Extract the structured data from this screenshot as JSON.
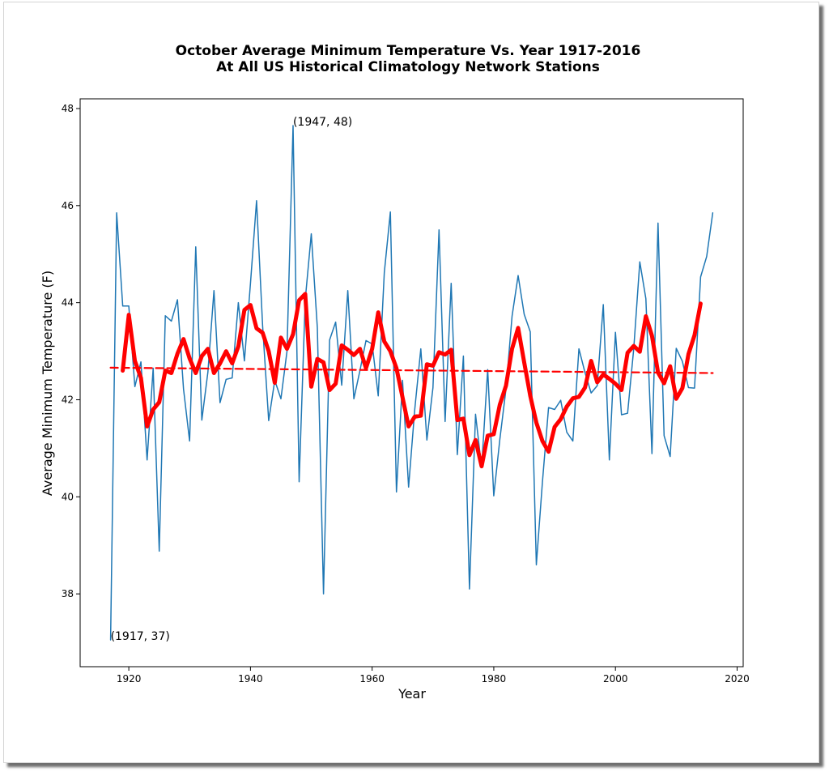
{
  "chart_data": {
    "type": "line",
    "title": "October Average Minimum Temperature Vs. Year 1917-2016",
    "subtitle": "At All US Historical Climatology Network Stations",
    "xlabel": "Year",
    "ylabel": "Average Minimum Temperature (F)",
    "xlim": [
      1912,
      2021
    ],
    "ylim": [
      36.5,
      48.2
    ],
    "xticks": [
      1920,
      1940,
      1960,
      1980,
      2000,
      2020
    ],
    "yticks": [
      38,
      40,
      42,
      44,
      46,
      48
    ],
    "grid": false,
    "legend": "none",
    "annotations": [
      {
        "text": "(1947, 48)",
        "x": 1947,
        "y": 47.65
      },
      {
        "text": "(1917, 37)",
        "x": 1917,
        "y": 37.05
      }
    ],
    "series": [
      {
        "style": "thin-line",
        "color": "#1f77b4",
        "x_start": 1917,
        "x_step": 1,
        "values": [
          37.05,
          45.85,
          43.93,
          43.93,
          42.27,
          42.78,
          40.76,
          42.65,
          38.88,
          43.73,
          43.62,
          44.06,
          42.22,
          41.15,
          45.15,
          41.58,
          42.57,
          44.25,
          41.94,
          42.42,
          42.45,
          44.0,
          42.8,
          44.4,
          46.1,
          43.52,
          41.57,
          42.4,
          42.02,
          43.0,
          47.65,
          40.31,
          44.05,
          45.42,
          43.48,
          38.0,
          43.23,
          43.6,
          42.3,
          44.25,
          42.02,
          42.6,
          43.22,
          43.15,
          42.08,
          44.62,
          45.87,
          40.1,
          42.4,
          40.2,
          41.8,
          43.05,
          41.17,
          42.25,
          45.5,
          41.55,
          44.4,
          40.87,
          42.9,
          38.1,
          41.7,
          40.6,
          42.62,
          40.02,
          41.18,
          42.22,
          43.72,
          44.56,
          43.76,
          43.4,
          38.6,
          40.3,
          41.84,
          41.8,
          41.99,
          41.33,
          41.15,
          43.05,
          42.56,
          42.14,
          42.29,
          43.96,
          40.76,
          43.39,
          41.69,
          41.72,
          43.05,
          44.84,
          44.08,
          40.89,
          45.64,
          41.26,
          40.83,
          43.06,
          42.79,
          42.25,
          42.24,
          44.53,
          44.95,
          45.85
        ]
      },
      {
        "style": "thick-line",
        "color": "#ff0000",
        "x_start": 1919,
        "x_step": 1,
        "values": [
          42.6,
          43.75,
          42.8,
          42.45,
          41.45,
          41.8,
          41.95,
          42.6,
          42.55,
          42.95,
          43.25,
          42.85,
          42.55,
          42.9,
          43.05,
          42.55,
          42.75,
          43.0,
          42.75,
          43.1,
          43.85,
          43.95,
          43.47,
          43.38,
          43.0,
          42.35,
          43.28,
          43.05,
          43.35,
          44.05,
          44.18,
          42.27,
          42.84,
          42.77,
          42.2,
          42.33,
          43.12,
          43.03,
          42.92,
          43.05,
          42.65,
          43.05,
          43.8,
          43.2,
          43.0,
          42.65,
          42.05,
          41.45,
          41.65,
          41.67,
          42.73,
          42.7,
          42.98,
          42.93,
          43.03,
          41.58,
          41.61,
          40.86,
          41.17,
          40.63,
          41.26,
          41.29,
          41.9,
          42.29,
          43.05,
          43.48,
          42.77,
          42.08,
          41.53,
          41.15,
          40.93,
          41.44,
          41.6,
          41.86,
          42.03,
          42.06,
          42.25,
          42.8,
          42.36,
          42.52,
          42.43,
          42.33,
          42.2,
          42.97,
          43.11,
          42.99,
          43.72,
          43.32,
          42.56,
          42.34,
          42.69,
          42.02,
          42.24,
          42.94,
          43.33,
          43.98
        ]
      },
      {
        "style": "dashed-trend",
        "color": "#ff0000",
        "x": [
          1917,
          2016
        ],
        "values": [
          42.66,
          42.55
        ]
      }
    ]
  }
}
